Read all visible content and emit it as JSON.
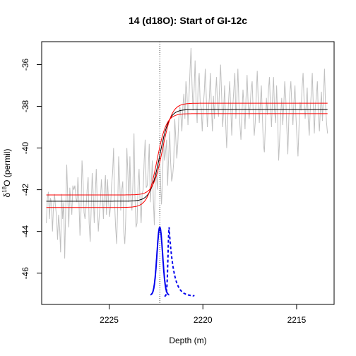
{
  "chart_data": {
    "type": "line",
    "title": "14 (d18O): Start of GI-12c",
    "xlabel": "Depth (m)",
    "ylabel_prefix": "δ",
    "ylabel_superscript": "18",
    "ylabel_suffix": "O (permil)",
    "xlim": [
      2228.6,
      2213.0
    ],
    "ylim": [
      -47.5,
      -34.9
    ],
    "x_ticks": [
      2225,
      2220,
      2215
    ],
    "x_tick_labels": [
      "2225",
      "2220",
      "2215"
    ],
    "y_ticks": [
      -46,
      -44,
      -42,
      -40,
      -38,
      -36
    ],
    "y_tick_labels": [
      "-46",
      "-44",
      "-42",
      "-40",
      "-38",
      "-36"
    ],
    "transition_depth": 2222.3,
    "series": [
      {
        "kind": "data",
        "color": "#c0c0c0",
        "x_start": 2228.35,
        "x_end": 2213.35,
        "values": [
          -43.6,
          -42.4,
          -42.1,
          -43.4,
          -42.4,
          -42.6,
          -44.0,
          -42.8,
          -42.2,
          -42.8,
          -43.3,
          -44.4,
          -43.2,
          -43.8,
          -45.0,
          -42.2,
          -43.4,
          -42.6,
          -45.3,
          -43.0,
          -40.8,
          -42.4,
          -43.8,
          -41.9,
          -42.6,
          -43.2,
          -41.8,
          -42.0,
          -41.8,
          -42.4,
          -42.6,
          -41.4,
          -42.6,
          -44.2,
          -43.0,
          -40.6,
          -41.6,
          -43.1,
          -43.4,
          -42.8,
          -42.0,
          -41.4,
          -43.6,
          -44.5,
          -42.9,
          -41.2,
          -42.2,
          -43.6,
          -42.2,
          -41.0,
          -42.8,
          -44.0,
          -43.2,
          -42.6,
          -41.5,
          -42.3,
          -43.4,
          -42.0,
          -41.3,
          -43.2,
          -41.5,
          -42.5,
          -43.3,
          -42.8,
          -41.8,
          -41.2,
          -40.0,
          -42.7,
          -43.8,
          -44.6,
          -42.8,
          -40.4,
          -41.6,
          -43.0,
          -42.0,
          -41.6,
          -44.0,
          -44.6,
          -43.3,
          -40.0,
          -41.2,
          -42.6,
          -40.4,
          -42.4,
          -43.0,
          -41.7,
          -39.3,
          -42.4,
          -43.8,
          -43.6,
          -41.8,
          -41.0,
          -42.6,
          -43.6,
          -42.2,
          -42.0,
          -40.6,
          -39.6,
          -41.9,
          -41.8,
          -41.0,
          -39.8,
          -42.6,
          -41.7,
          -40.6,
          -42.5,
          -43.7,
          -41.2,
          -41.2,
          -42.0,
          -40.7,
          -40.5,
          -41.5,
          -42.7,
          -41.6,
          -39.4,
          -40.6,
          -40.2,
          -39.6,
          -41.8,
          -40.5,
          -39.2,
          -40.7,
          -41.6,
          -41.3,
          -40.7,
          -38.6,
          -39.5,
          -40.5,
          -39.8,
          -38.6,
          -38.0,
          -38.4,
          -39.2,
          -38.0,
          -37.4,
          -38.6,
          -36.8,
          -37.4,
          -38.9,
          -37.5,
          -36.3,
          -35.2,
          -37.0,
          -38.2,
          -37.2,
          -35.8,
          -37.9,
          -38.8,
          -37.0,
          -36.4,
          -37.8,
          -38.1,
          -39.2,
          -38.0,
          -37.3,
          -36.2,
          -37.6,
          -39.0,
          -38.2,
          -37.6,
          -36.4,
          -38.0,
          -39.2,
          -37.5,
          -38.6,
          -37.4,
          -36.6,
          -37.9,
          -38.5,
          -37.1,
          -36.0,
          -37.4,
          -39.0,
          -38.2,
          -37.0,
          -38.8,
          -40.0,
          -38.6,
          -37.6,
          -36.8,
          -38.1,
          -39.4,
          -38.0,
          -37.2,
          -36.4,
          -38.6,
          -37.6,
          -36.2,
          -37.8,
          -38.9,
          -39.6,
          -38.3,
          -37.2,
          -38.0,
          -39.1,
          -37.6,
          -36.5,
          -37.8,
          -38.6,
          -38.0,
          -37.2,
          -36.8,
          -38.2,
          -39.4,
          -38.8,
          -37.4,
          -36.3,
          -37.7,
          -38.8,
          -37.9,
          -37.0,
          -38.4,
          -39.8,
          -40.2,
          -38.9,
          -37.6,
          -38.4,
          -37.2,
          -36.6,
          -38.0,
          -39.0,
          -37.6,
          -36.6,
          -38.2,
          -38.8,
          -37.0,
          -38.4,
          -40.6,
          -39.6,
          -38.4,
          -37.6,
          -38.9,
          -38.0,
          -36.8,
          -37.6,
          -39.0,
          -40.3,
          -38.6,
          -37.4,
          -36.8,
          -38.0,
          -38.9,
          -37.8,
          -37.0,
          -38.5,
          -39.5,
          -40.4,
          -39.0,
          -37.8,
          -38.2,
          -37.1,
          -36.4,
          -37.7,
          -38.6,
          -38.0,
          -37.1,
          -38.6,
          -39.4,
          -38.2,
          -37.4,
          -36.4,
          -37.9,
          -39.3,
          -38.0,
          -37.6,
          -36.8,
          -38.4,
          -39.2,
          -38.1,
          -37.3,
          -38.7,
          -37.6,
          -36.2,
          -37.9,
          -38.8,
          -39.3
        ]
      },
      {
        "kind": "fit",
        "color": "#000000",
        "x0": 2222.3,
        "width": 0.25,
        "y_before": -42.55,
        "y_after": -38.15
      },
      {
        "kind": "upper-band",
        "color": "#ff0000",
        "x0": 2222.15,
        "width": 0.25,
        "y_before": -42.25,
        "y_after": -37.85
      },
      {
        "kind": "lower-band",
        "color": "#ff0000",
        "x0": 2222.45,
        "width": 0.25,
        "y_before": -42.85,
        "y_after": -38.35
      },
      {
        "kind": "density-solid",
        "color": "#0000ee",
        "center": 2222.3,
        "sd": 0.15,
        "baseline": -47.05,
        "peak": -43.8
      },
      {
        "kind": "density-dashed",
        "color": "#0000ee",
        "center": 2221.8,
        "sd": 0.06,
        "tail": 0.55,
        "baseline": -47.1,
        "peak": -43.8
      }
    ],
    "grid": false,
    "legend": "none"
  }
}
